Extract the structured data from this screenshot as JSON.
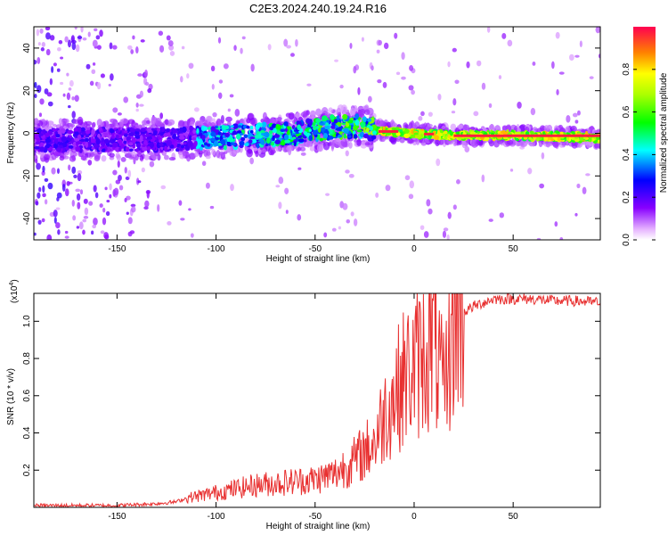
{
  "title": "C2E3.2024.240.19.24.R16",
  "chart_data": [
    {
      "type": "heatmap",
      "xlabel": "Height of straight line (km)",
      "ylabel": "Frequency (Hz)",
      "xlim": [
        -192,
        94
      ],
      "ylim": [
        -50,
        50
      ],
      "xticks": [
        -150,
        -100,
        -50,
        0,
        50
      ],
      "yticks": [
        -40,
        -20,
        0,
        20,
        40
      ],
      "colorbar": {
        "label": "Normalized spectral amplitude",
        "range": [
          0,
          1
        ],
        "ticks": [
          "0.0",
          "0.2",
          "0.4",
          "0.6",
          "0.8"
        ]
      },
      "ridge": {
        "description": "frequency ridge center (Hz) vs height (km)",
        "x": [
          -192,
          -150,
          -120,
          -100,
          -80,
          -60,
          -40,
          -25,
          -15,
          0,
          20,
          50,
          94
        ],
        "y": [
          -3,
          -3,
          -3,
          -2,
          -1,
          0,
          3,
          3,
          1,
          0,
          -1,
          -1,
          -2
        ]
      }
    },
    {
      "type": "line",
      "xlabel": "Height of straight line (km)",
      "ylabel": "SNR (10 * v/v)",
      "yscale_label": "(x10",
      "yscale_exp": "4",
      "xlim": [
        -192,
        94
      ],
      "ylim": [
        0,
        1.15
      ],
      "xticks": [
        -150,
        -100,
        -50,
        0,
        50
      ],
      "yticks": [
        "0.2",
        "0.4",
        "0.6",
        "0.8",
        "1.0"
      ],
      "series": [
        {
          "name": "SNR",
          "color": "#e83030",
          "x": [
            -192,
            -170,
            -150,
            -130,
            -120,
            -115,
            -110,
            -100,
            -90,
            -80,
            -70,
            -60,
            -50,
            -40,
            -35,
            -30,
            -25,
            -20,
            -15,
            -10,
            -5,
            0,
            5,
            10,
            15,
            20,
            25,
            30,
            40,
            50,
            60,
            70,
            80,
            94
          ],
          "y": [
            0.01,
            0.01,
            0.01,
            0.02,
            0.03,
            0.05,
            0.06,
            0.08,
            0.1,
            0.12,
            0.13,
            0.14,
            0.15,
            0.18,
            0.22,
            0.25,
            0.3,
            0.35,
            0.5,
            0.6,
            0.7,
            0.75,
            0.82,
            0.9,
            0.6,
            1.0,
            1.05,
            1.08,
            1.12,
            1.12,
            1.12,
            1.11,
            1.11,
            1.1
          ]
        }
      ]
    }
  ]
}
